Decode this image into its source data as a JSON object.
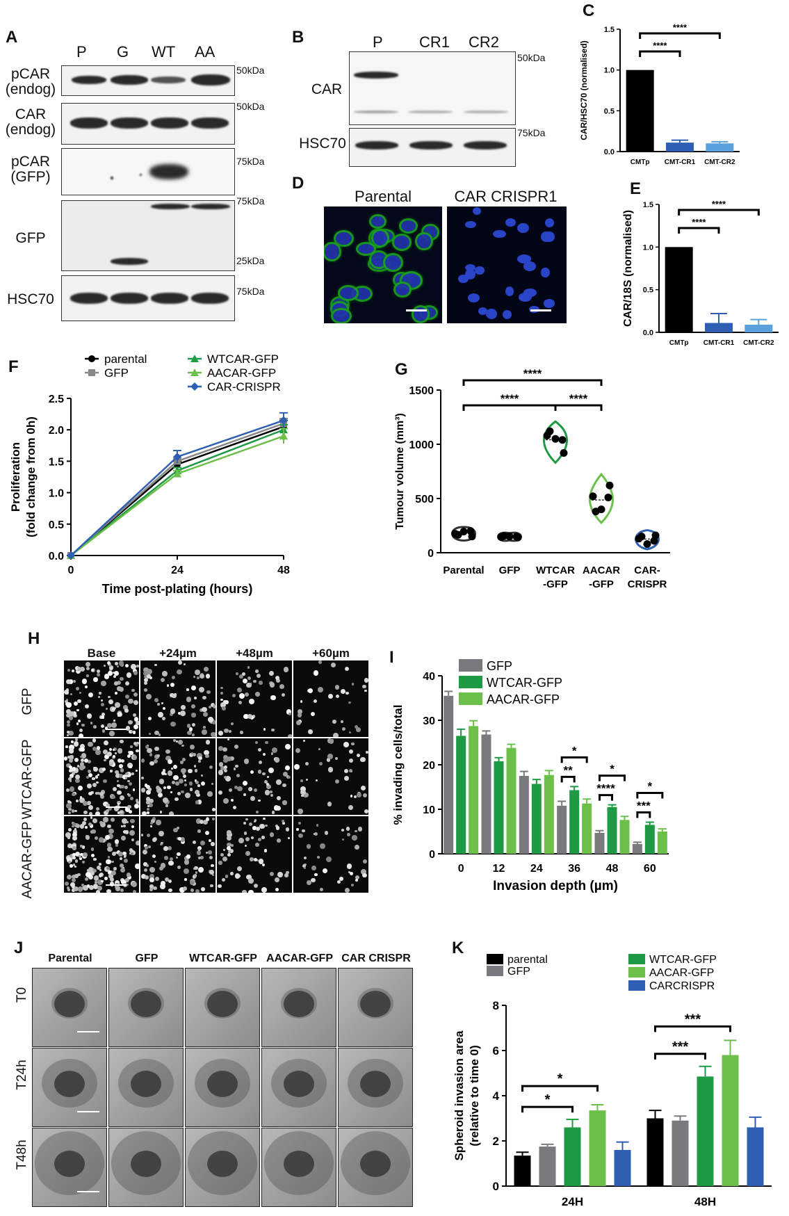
{
  "panelA": {
    "label": "A",
    "lanes": [
      "P",
      "G",
      "WT",
      "AA"
    ],
    "rows": [
      {
        "label": "pCAR\n(endog)",
        "kda": "50kDa"
      },
      {
        "label": "CAR\n(endog)",
        "kda": "50kDa"
      },
      {
        "label": "pCAR\n(GFP)",
        "kda": "75kDa"
      },
      {
        "label": "GFP",
        "kda": "75kDa",
        "kda2": "25kDa"
      },
      {
        "label": "HSC70",
        "kda": "75kDa"
      }
    ]
  },
  "panelB": {
    "label": "B",
    "lanes": [
      "P",
      "CR1",
      "CR2"
    ],
    "rows": [
      {
        "label": "CAR",
        "kda": "50kDa"
      },
      {
        "label": "HSC70",
        "kda": "75kDa"
      }
    ]
  },
  "panelC": {
    "label": "C",
    "chart_data": {
      "type": "bar",
      "categories": [
        "CMTp",
        "CMT-CR1",
        "CMT-CR2"
      ],
      "values": [
        1.0,
        0.11,
        0.1
      ],
      "errors": [
        0,
        0.03,
        0.02
      ],
      "ylabel": "CAR/HSC70 (normalised)",
      "ylim": [
        0,
        1.5
      ],
      "yticks": [
        "0.0",
        "0.5",
        "1.0",
        "1.5"
      ],
      "colors": [
        "#000000",
        "#2f5fb3",
        "#5aa0dc"
      ],
      "significance": [
        "****",
        "****"
      ]
    }
  },
  "panelD": {
    "label": "D",
    "titles": [
      "Parental",
      "CAR CRISPR1"
    ]
  },
  "panelE": {
    "label": "E",
    "chart_data": {
      "type": "bar",
      "categories": [
        "CMTp",
        "CMT-CR1",
        "CMT-CR2"
      ],
      "values": [
        1.0,
        0.11,
        0.09
      ],
      "errors": [
        0,
        0.11,
        0.06
      ],
      "ylabel": "CAR/18S (normalised)",
      "ylim": [
        0,
        1.5
      ],
      "yticks": [
        "0.0",
        "0.5",
        "1.0",
        "1.5"
      ],
      "colors": [
        "#000000",
        "#2f5fb3",
        "#5aa0dc"
      ],
      "significance": [
        "****",
        "****"
      ]
    }
  },
  "panelF": {
    "label": "F",
    "chart_data": {
      "type": "line",
      "x": [
        0,
        24,
        48
      ],
      "xticks": [
        "0",
        "24",
        "48"
      ],
      "yticks": [
        "0.0",
        "0.5",
        "1.0",
        "1.5",
        "2.0",
        "2.5"
      ],
      "xlabel": "Time post-plating (hours)",
      "ylabel": "Proliferation\n(fold change from 0h)",
      "ylim": [
        0,
        2.5
      ],
      "series": [
        {
          "name": "parental",
          "values": [
            0,
            1.45,
            2.05
          ],
          "err": [
            0,
            0.05,
            0.1
          ],
          "color": "#000000"
        },
        {
          "name": "GFP",
          "values": [
            0,
            1.5,
            2.1
          ],
          "err": [
            0,
            0.05,
            0.08
          ],
          "color": "#888888"
        },
        {
          "name": "WTCAR-GFP",
          "values": [
            0,
            1.35,
            2.0
          ],
          "err": [
            0,
            0.05,
            0.08
          ],
          "color": "#1e9a44"
        },
        {
          "name": "AACAR-GFP",
          "values": [
            0,
            1.3,
            1.9
          ],
          "err": [
            0,
            0.05,
            0.12
          ],
          "color": "#6cc04a"
        },
        {
          "name": "CAR-CRISPR",
          "values": [
            0,
            1.57,
            2.15
          ],
          "err": [
            0,
            0.1,
            0.12
          ],
          "color": "#2f5fb3"
        }
      ]
    }
  },
  "panelG": {
    "label": "G",
    "chart_data": {
      "type": "scatter",
      "categories": [
        "Parental",
        "GFP",
        "WTCAR\n-GFP",
        "AACAR\n-GFP",
        "CAR-\nCRISPR"
      ],
      "points": [
        [
          175,
          150,
          195,
          165,
          200
        ],
        [
          145,
          140,
          150,
          155,
          148
        ],
        [
          1080,
          920,
          1050,
          1120,
          1040
        ],
        [
          520,
          620,
          400,
          380,
          510
        ],
        [
          130,
          160,
          80,
          150,
          110
        ]
      ],
      "colors": [
        "#333333",
        "#333333",
        "#1e9a44",
        "#6cc04a",
        "#2f5fb3"
      ],
      "ylabel": "Tumour volume (mm³)",
      "ylim": [
        0,
        1500
      ],
      "yticks": [
        "0",
        "500",
        "1000",
        "1500"
      ],
      "significance": [
        "****",
        "****",
        "****"
      ]
    }
  },
  "panelH": {
    "label": "H",
    "columns": [
      "Base",
      "+24µm",
      "+48µm",
      "+60µm"
    ],
    "rows": [
      "GFP",
      "WTCAR-GFP",
      "AACAR-GFP"
    ]
  },
  "panelI": {
    "label": "I",
    "chart_data": {
      "type": "bar",
      "categories": [
        "0",
        "12",
        "24",
        "36",
        "48",
        "60"
      ],
      "xlabel": "Invasion depth (µm)",
      "ylabel": "% invading cells/total",
      "ylim": [
        0,
        40
      ],
      "yticks": [
        "0",
        "10",
        "20",
        "30",
        "40"
      ],
      "series": [
        {
          "name": "GFP",
          "values": [
            35.5,
            26.8,
            17.5,
            10.8,
            4.7,
            2.2
          ],
          "err": [
            1,
            0.8,
            1,
            1,
            0.5,
            0.4
          ],
          "color": "#7a7a7e"
        },
        {
          "name": "WTCAR-GFP",
          "values": [
            26.5,
            20.8,
            15.7,
            14.3,
            10.5,
            6.5
          ],
          "err": [
            1.5,
            0.8,
            1,
            0.8,
            0.5,
            0.6
          ],
          "color": "#1e9a44"
        },
        {
          "name": "AACAR-GFP",
          "values": [
            28.7,
            23.8,
            17.7,
            11.3,
            7.6,
            5.0
          ],
          "err": [
            1.2,
            0.8,
            1,
            1,
            0.8,
            0.6
          ],
          "color": "#6cc04a"
        }
      ],
      "significance": [
        "*",
        "**",
        "*",
        "****",
        "*",
        "***"
      ]
    }
  },
  "panelJ": {
    "label": "J",
    "columns": [
      "Parental",
      "GFP",
      "WTCAR-GFP",
      "AACAR-GFP",
      "CAR CRISPR"
    ],
    "rows": [
      "T0",
      "T24h",
      "T48h"
    ]
  },
  "panelK": {
    "label": "K",
    "chart_data": {
      "type": "bar",
      "categories": [
        "24H",
        "48H"
      ],
      "ylabel": "Spheroid invasion area\n(relative to time 0)",
      "ylim": [
        0,
        8
      ],
      "yticks": [
        "0",
        "2",
        "4",
        "6",
        "8"
      ],
      "series": [
        {
          "name": "parental",
          "values": [
            1.35,
            3.0
          ],
          "err": [
            0.15,
            0.35
          ],
          "color": "#000000"
        },
        {
          "name": "GFP",
          "values": [
            1.75,
            2.9
          ],
          "err": [
            0.1,
            0.2
          ],
          "color": "#7a7a7e"
        },
        {
          "name": "WTCAR-GFP",
          "values": [
            2.6,
            4.85
          ],
          "err": [
            0.35,
            0.45
          ],
          "color": "#1e9a44"
        },
        {
          "name": "AACAR-GFP",
          "values": [
            3.35,
            5.8
          ],
          "err": [
            0.25,
            0.65
          ],
          "color": "#6cc04a"
        },
        {
          "name": "CARCRISPR",
          "values": [
            1.6,
            2.6
          ],
          "err": [
            0.35,
            0.45
          ],
          "color": "#2f5fb3"
        }
      ],
      "significance": [
        "*",
        "*",
        "***",
        "***"
      ]
    }
  }
}
